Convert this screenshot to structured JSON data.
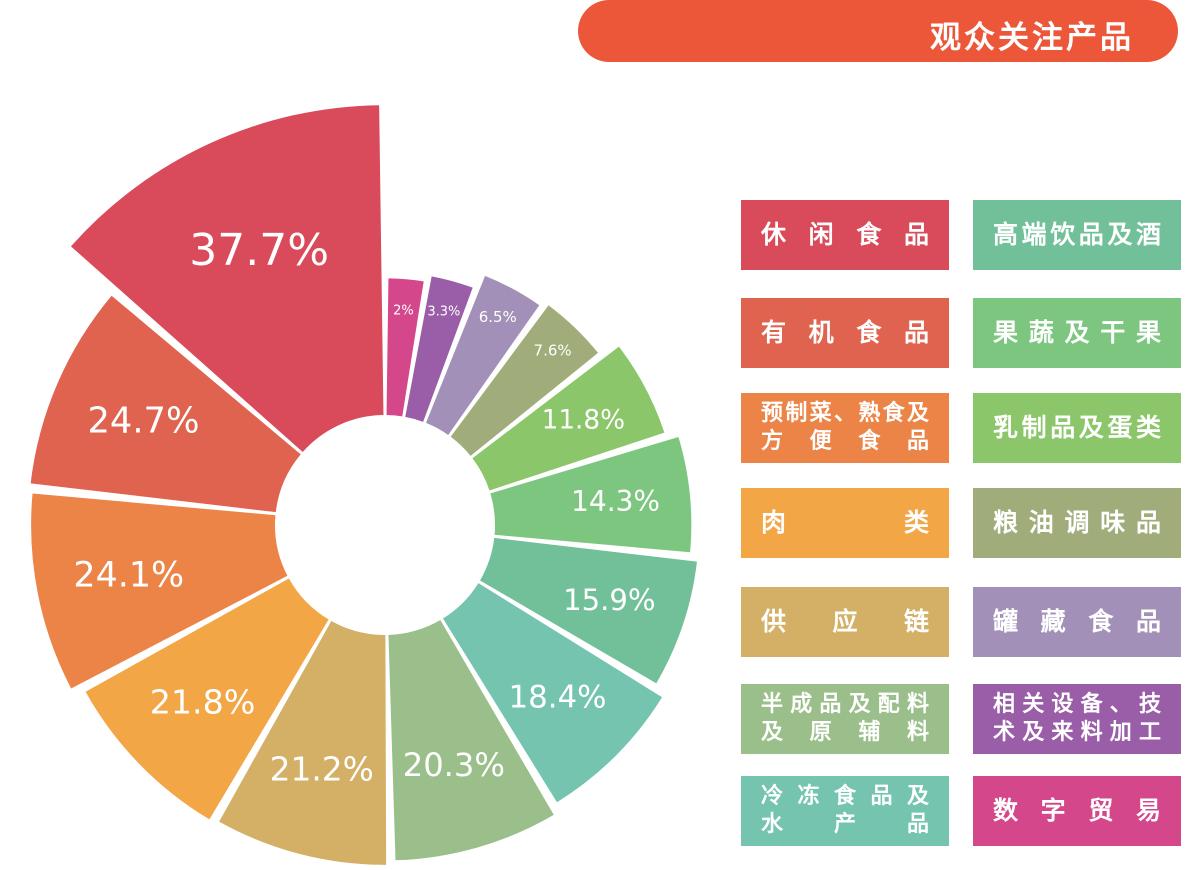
{
  "header": {
    "title": "观众关注产品"
  },
  "chart_data": {
    "type": "rose",
    "title": "",
    "series": [
      {
        "label": "数字贸易",
        "value": 2,
        "display": "2%",
        "color": "#d4478a"
      },
      {
        "label": "相关设备、技术及来料加工",
        "value": 3.3,
        "display": "3.3%",
        "color": "#9a5ea8"
      },
      {
        "label": "罐藏食品",
        "value": 6.5,
        "display": "6.5%",
        "color": "#a390b8"
      },
      {
        "label": "粮油调味品",
        "value": 7.6,
        "display": "7.6%",
        "color": "#a0ad7a"
      },
      {
        "label": "乳制品及蛋类",
        "value": 11.8,
        "display": "11.8%",
        "color": "#8cc66a"
      },
      {
        "label": "果蔬及干果",
        "value": 14.3,
        "display": "14.3%",
        "color": "#7dc67f"
      },
      {
        "label": "高端饮品及酒",
        "value": 15.9,
        "display": "15.9%",
        "color": "#72c09a"
      },
      {
        "label": "冷冻食品及水产品",
        "value": 18.4,
        "display": "18.4%",
        "color": "#74c4b0"
      },
      {
        "label": "半成品及配料及原辅料",
        "value": 20.3,
        "display": "20.3%",
        "color": "#9bbf8a"
      },
      {
        "label": "供应链",
        "value": 21.2,
        "display": "21.2%",
        "color": "#d3b066"
      },
      {
        "label": "肉类",
        "value": 21.8,
        "display": "21.8%",
        "color": "#f2a646"
      },
      {
        "label": "预制菜、熟食及方便食品",
        "value": 24.1,
        "display": "24.1%",
        "color": "#ec8447"
      },
      {
        "label": "有机食品",
        "value": 24.7,
        "display": "24.7%",
        "color": "#e0634f"
      },
      {
        "label": "休闲食品",
        "value": 37.7,
        "display": "37.7%",
        "color": "#d94a5a"
      }
    ]
  },
  "legend": {
    "left": [
      {
        "lines": [
          "休闲食品"
        ],
        "color": "#d94a5a"
      },
      {
        "lines": [
          "有机食品"
        ],
        "color": "#e0634f"
      },
      {
        "lines": [
          "预制菜、熟食及",
          "方便食品"
        ],
        "color": "#ec8447"
      },
      {
        "lines": [
          "肉类"
        ],
        "color": "#f2a646"
      },
      {
        "lines": [
          "供应链"
        ],
        "color": "#d3b066"
      },
      {
        "lines": [
          "半成品及配料",
          "及原辅料"
        ],
        "color": "#9bbf8a"
      },
      {
        "lines": [
          "冷冻食品及",
          "水产品"
        ],
        "color": "#74c4b0"
      }
    ],
    "right": [
      {
        "lines": [
          "高端饮品及酒"
        ],
        "color": "#72c09a"
      },
      {
        "lines": [
          "果蔬及干果"
        ],
        "color": "#7dc67f"
      },
      {
        "lines": [
          "乳制品及蛋类"
        ],
        "color": "#8cc66a"
      },
      {
        "lines": [
          "粮油调味品"
        ],
        "color": "#a0ad7a"
      },
      {
        "lines": [
          "罐藏食品"
        ],
        "color": "#a390b8"
      },
      {
        "lines": [
          "相关设备、技",
          "术及来料加工"
        ],
        "color": "#9a5ea8"
      },
      {
        "lines": [
          "数字贸易"
        ],
        "color": "#d4478a"
      }
    ]
  }
}
